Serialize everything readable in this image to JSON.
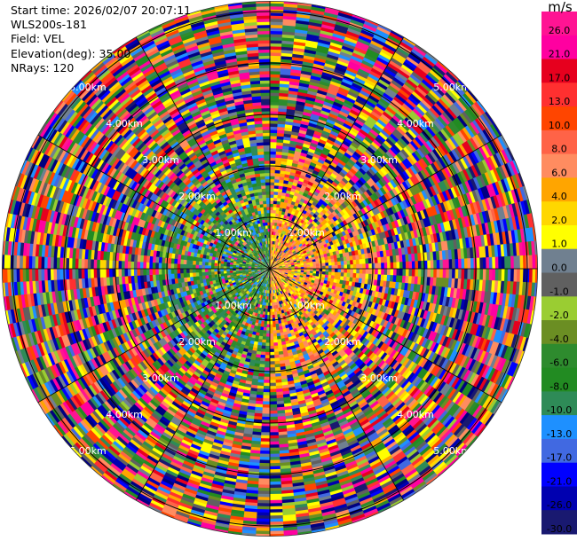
{
  "header": {
    "start_time": "Start time: 2026/02/07 20:07:11",
    "instrument": "WLS200s-181",
    "field": "Field: VEL",
    "elevation": "Elevation(deg): 35.00",
    "nrays": "NRays: 120"
  },
  "chart_data": {
    "type": "heatmap",
    "projection": "polar-ppi",
    "field": "VEL",
    "unit": "m/s",
    "nrays": 120,
    "range_rings": [
      {
        "range_km": 1.0,
        "label": "1.00km"
      },
      {
        "range_km": 2.0,
        "label": "2.00km"
      },
      {
        "range_km": 3.0,
        "label": "3.00km"
      },
      {
        "range_km": 4.0,
        "label": "4.00km"
      },
      {
        "range_km": 5.0,
        "label": "5.00km"
      }
    ],
    "max_range_km": 5.2,
    "colorbar": {
      "title": "m/s",
      "levels": [
        {
          "value": "26.0",
          "color": "#ff1493"
        },
        {
          "value": "21.0",
          "color": "#ff00a0"
        },
        {
          "value": "17.0",
          "color": "#e6001e"
        },
        {
          "value": "13.0",
          "color": "#ff3030"
        },
        {
          "value": "10.0",
          "color": "#ff4500"
        },
        {
          "value": "8.0",
          "color": "#ff6347"
        },
        {
          "value": "6.0",
          "color": "#ff8c60"
        },
        {
          "value": "4.0",
          "color": "#ffa500"
        },
        {
          "value": "2.0",
          "color": "#ffd700"
        },
        {
          "value": "1.0",
          "color": "#ffff00"
        },
        {
          "value": "0.0",
          "color": "#708090"
        },
        {
          "value": "-1.0",
          "color": "#606060"
        },
        {
          "value": "-2.0",
          "color": "#9acd32"
        },
        {
          "value": "-4.0",
          "color": "#6b8e23"
        },
        {
          "value": "-6.0",
          "color": "#2e8b2e"
        },
        {
          "value": "-8.0",
          "color": "#228b22"
        },
        {
          "value": "-10.0",
          "color": "#2e8b57"
        },
        {
          "value": "-13.0",
          "color": "#1e90ff"
        },
        {
          "value": "-17.0",
          "color": "#4169e1"
        },
        {
          "value": "-21.0",
          "color": "#0000ff"
        },
        {
          "value": "-26.0",
          "color": "#0000b0"
        },
        {
          "value": "-30.0",
          "color": "#000080"
        }
      ],
      "bottom_color": "#191970"
    },
    "velocity_pattern": {
      "near_positive_sector": "north-east (yellow/orange)",
      "near_negative_sector": "south-west (green/blue)",
      "far_field": "noise (all colors)"
    }
  }
}
